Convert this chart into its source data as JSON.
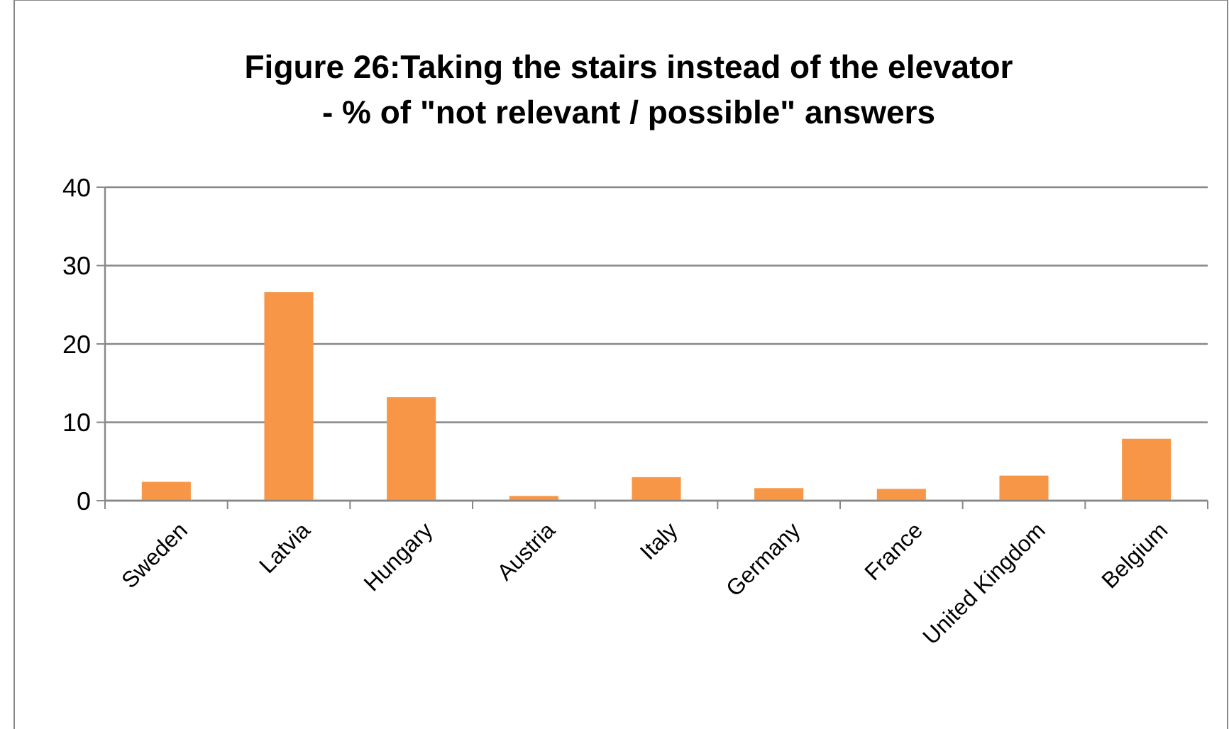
{
  "chart_data": {
    "type": "bar",
    "title": "Figure 26:Taking the stairs instead of the elevator\n- % of \"not relevant / possible\" answers",
    "categories": [
      "Sweden",
      "Latvia",
      "Hungary",
      "Austria",
      "Italy",
      "Germany",
      "France",
      "United Kingdom",
      "Belgium"
    ],
    "values": [
      2.4,
      26.6,
      13.2,
      0.6,
      3.0,
      1.6,
      1.5,
      3.2,
      7.9
    ],
    "color": "#f79646",
    "ylim": [
      0,
      40
    ],
    "yticks": [
      0,
      10,
      20,
      30,
      40
    ],
    "grid": "y"
  }
}
